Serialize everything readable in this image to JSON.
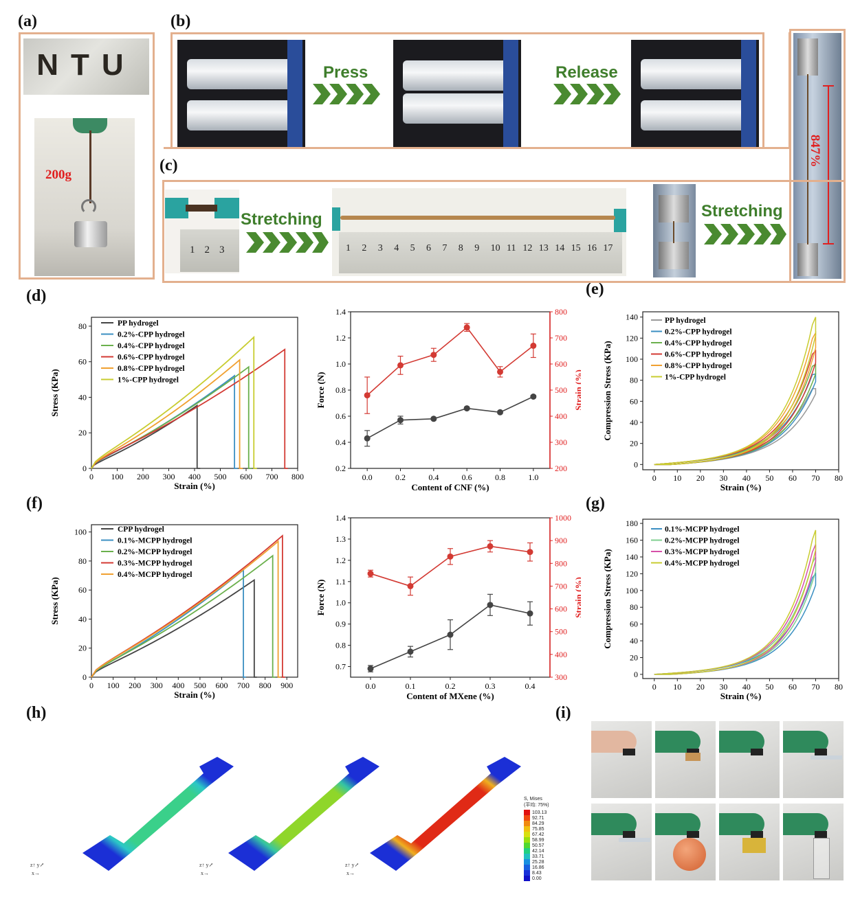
{
  "panels": {
    "a": "(a)",
    "b": "(b)",
    "c": "(c)",
    "d": "(d)",
    "e": "(e)",
    "f": "(f)",
    "g": "(g)",
    "h": "(h)",
    "i": "(i)"
  },
  "panel_a": {
    "text_sample": "NTU",
    "weight_label": "200g"
  },
  "panel_b": {
    "press": "Press",
    "release": "Release",
    "strain_annotation": "847%"
  },
  "panel_c": {
    "stretch1": "Stretching",
    "stretch2": "Stretching",
    "ruler_small": [
      "1",
      "2",
      "3"
    ],
    "ruler_big": [
      "1",
      "2",
      "3",
      "4",
      "5",
      "6",
      "7",
      "8",
      "9",
      "10",
      "11",
      "12",
      "13",
      "14",
      "15",
      "16",
      "17"
    ]
  },
  "panel_h": {
    "legend_title": "S, Mises\n(平均: 75%)",
    "legend_values": [
      "103.13",
      "92.71",
      "84.29",
      "75.85",
      "67.42",
      "58.99",
      "50.57",
      "42.14",
      "33.71",
      "25.28",
      "16.86",
      "8.43",
      "0.00"
    ]
  },
  "colors": {
    "frame": "#e3b08e",
    "arrow_green": "#3f7e2c",
    "red": "#e02020"
  },
  "chart_data": [
    {
      "id": "d_left",
      "type": "line",
      "xlabel": "Strain (%)",
      "ylabel": "Stress (KPa)",
      "xlim": [
        0,
        800
      ],
      "ylim": [
        0,
        85
      ],
      "xticks": [
        0,
        100,
        200,
        300,
        400,
        500,
        600,
        700,
        800
      ],
      "yticks": [
        0,
        20,
        40,
        60,
        80
      ],
      "series": [
        {
          "name": "PP hydrogel",
          "color": "#444444",
          "x_break": 410,
          "peak": 36
        },
        {
          "name": "0.2%-CPP hydrogel",
          "color": "#3b8fc2",
          "x_break": 555,
          "peak": 53
        },
        {
          "name": "0.4%-CPP hydrogel",
          "color": "#6ab04c",
          "x_break": 610,
          "peak": 58
        },
        {
          "name": "0.6%-CPP hydrogel",
          "color": "#d33a33",
          "x_break": 750,
          "peak": 68
        },
        {
          "name": "0.8%-CPP hydrogel",
          "color": "#f0a030",
          "x_break": 575,
          "peak": 62
        },
        {
          "name": "1%-CPP hydrogel",
          "color": "#c8cc30",
          "x_break": 630,
          "peak": 75
        }
      ]
    },
    {
      "id": "d_right",
      "type": "line",
      "xlabel": "Content of CNF (%)",
      "ylabel": "Force (N)",
      "ylabel2": "Strain (%)",
      "x": [
        0.0,
        0.2,
        0.4,
        0.6,
        0.8,
        1.0
      ],
      "xlim": [
        -0.1,
        1.1
      ],
      "ylim": [
        0.2,
        1.4
      ],
      "ylim2": [
        200,
        800
      ],
      "xticks": [
        "0.0",
        "0.2",
        "0.4",
        "0.6",
        "0.8",
        "1.0"
      ],
      "yticks": [
        "0.2",
        "0.4",
        "0.6",
        "0.8",
        "1.0",
        "1.2",
        "1.4"
      ],
      "yticks2": [
        "200",
        "300",
        "400",
        "500",
        "600",
        "700",
        "800"
      ],
      "series": [
        {
          "name": "Force",
          "axis": "left",
          "color": "#444444",
          "values": [
            0.43,
            0.57,
            0.58,
            0.66,
            0.63,
            0.75
          ],
          "err": [
            0.06,
            0.03,
            0.01,
            0.01,
            0.01,
            0.01
          ]
        },
        {
          "name": "Strain",
          "axis": "right",
          "color": "#d33a33",
          "values": [
            480,
            595,
            635,
            740,
            570,
            670
          ],
          "err": [
            70,
            35,
            25,
            15,
            20,
            45
          ]
        }
      ]
    },
    {
      "id": "e",
      "type": "line",
      "xlabel": "Strain (%)",
      "ylabel": "Compression Stress (KPa)",
      "xlim": [
        -5,
        80
      ],
      "ylim": [
        -5,
        145
      ],
      "xticks": [
        0,
        10,
        20,
        30,
        40,
        50,
        60,
        70,
        80
      ],
      "yticks": [
        0,
        20,
        40,
        60,
        80,
        100,
        120,
        140
      ],
      "series": [
        {
          "name": "PP hydrogel",
          "color": "#999999",
          "peak": 72
        },
        {
          "name": "0.2%-CPP hydrogel",
          "color": "#3b8fc2",
          "peak": 86
        },
        {
          "name": "0.4%-CPP hydrogel",
          "color": "#6ab04c",
          "peak": 95
        },
        {
          "name": "0.6%-CPP hydrogel",
          "color": "#d33a33",
          "peak": 108
        },
        {
          "name": "0.8%-CPP hydrogel",
          "color": "#f0a030",
          "peak": 125
        },
        {
          "name": "1%-CPP hydrogel",
          "color": "#c8cc30",
          "peak": 140
        }
      ]
    },
    {
      "id": "f_left",
      "type": "line",
      "xlabel": "Strain (%)",
      "ylabel": "Stress (KPa)",
      "xlim": [
        0,
        950
      ],
      "ylim": [
        0,
        105
      ],
      "xticks": [
        0,
        100,
        200,
        300,
        400,
        500,
        600,
        700,
        800,
        900
      ],
      "yticks": [
        0,
        20,
        40,
        60,
        80,
        100
      ],
      "series": [
        {
          "name": "CPP hydrogel",
          "color": "#444444",
          "x_break": 750,
          "peak": 68
        },
        {
          "name": "0.1%-MCPP hydrogel",
          "color": "#3b8fc2",
          "x_break": 700,
          "peak": 75
        },
        {
          "name": "0.2%-MCPP hydrogel",
          "color": "#6ab04c",
          "x_break": 835,
          "peak": 85
        },
        {
          "name": "0.3%-MCPP hydrogel",
          "color": "#d33a33",
          "x_break": 880,
          "peak": 99
        },
        {
          "name": "0.4%-MCPP hydrogel",
          "color": "#f0a030",
          "x_break": 860,
          "peak": 95
        }
      ]
    },
    {
      "id": "f_right",
      "type": "line",
      "xlabel": "Content of MXene (%)",
      "ylabel": "Force (N)",
      "ylabel2": "Strain (%)",
      "x": [
        0.0,
        0.1,
        0.2,
        0.3,
        0.4
      ],
      "xlim": [
        -0.05,
        0.45
      ],
      "ylim": [
        0.65,
        1.4
      ],
      "ylim2": [
        300,
        1000
      ],
      "xticks": [
        "0.0",
        "0.1",
        "0.2",
        "0.3",
        "0.4"
      ],
      "yticks": [
        "0.7",
        "0.8",
        "0.9",
        "1.0",
        "1.1",
        "1.2",
        "1.3",
        "1.4"
      ],
      "yticks2": [
        "300",
        "400",
        "500",
        "600",
        "700",
        "800",
        "900",
        "1000"
      ],
      "series": [
        {
          "name": "Force",
          "axis": "left",
          "color": "#444444",
          "values": [
            0.69,
            0.77,
            0.85,
            0.99,
            0.95
          ],
          "err": [
            0.015,
            0.025,
            0.07,
            0.05,
            0.055
          ]
        },
        {
          "name": "Strain",
          "axis": "right",
          "color": "#d33a33",
          "values": [
            755,
            700,
            830,
            875,
            850
          ],
          "err": [
            15,
            40,
            35,
            25,
            40
          ]
        }
      ]
    },
    {
      "id": "g",
      "type": "line",
      "xlabel": "Strain (%)",
      "ylabel": "Compression Stress (KPa)",
      "xlim": [
        -5,
        80
      ],
      "ylim": [
        -5,
        185
      ],
      "xticks": [
        0,
        10,
        20,
        30,
        40,
        50,
        60,
        70,
        80
      ],
      "yticks": [
        0,
        20,
        40,
        60,
        80,
        100,
        120,
        140,
        160,
        180
      ],
      "series": [
        {
          "name": "0.1%-MCPP hydrogel",
          "color": "#3b8fc2",
          "peak": 120
        },
        {
          "name": "0.2%-MCPP hydrogel",
          "color": "#7fcf8f",
          "peak": 140
        },
        {
          "name": "0.3%-MCPP hydrogel",
          "color": "#d64fa8",
          "peak": 155
        },
        {
          "name": "0.4%-MCPP hydrogel",
          "color": "#c8cc30",
          "peak": 172
        }
      ]
    }
  ]
}
